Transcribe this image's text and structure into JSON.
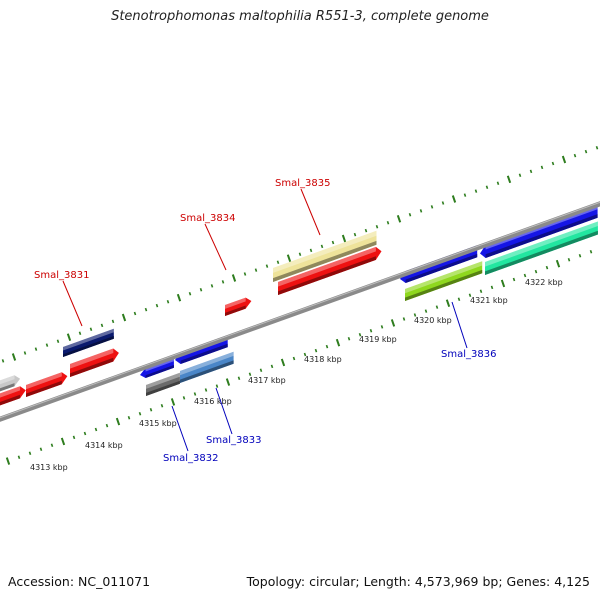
{
  "title": "Stenotrophomonas maltophilia R551-3, complete genome",
  "footer": {
    "accession": "Accession: NC_011071",
    "summary": "Topology: circular; Length: 4,573,969 bp; Genes: 4,125"
  },
  "colors": {
    "plus_label": "#cc0000",
    "minus_label": "#0000bb",
    "backbone": "#8a8a8a",
    "tick": "#2e7d1e"
  },
  "scale_labels": [
    "4313 kbp",
    "4314 kbp",
    "4315 kbp",
    "4316 kbp",
    "4317 kbp",
    "4318 kbp",
    "4319 kbp",
    "4320 kbp",
    "4321 kbp",
    "4322 kbp"
  ],
  "gene_labels": {
    "plus": [
      "Smal_3831",
      "Smal_3834",
      "Smal_3835"
    ],
    "minus": [
      "Smal_3832",
      "Smal_3833",
      "Smal_3836"
    ]
  },
  "features": [
    {
      "name": "feature-silver-upper",
      "color": "#c8c8c8"
    },
    {
      "name": "feature-navy",
      "color": "#0a1a6e"
    },
    {
      "name": "feature-red-upper",
      "color": "#ee1111"
    },
    {
      "name": "feature-pale-yellow",
      "color": "#eee39a"
    },
    {
      "name": "feature-blue-upper",
      "color": "#1515e6"
    },
    {
      "name": "feature-gray-lower",
      "color": "#6a6a6a"
    },
    {
      "name": "feature-steel-blue",
      "color": "#4a86c8"
    },
    {
      "name": "feature-yellow-green",
      "color": "#8fd81e"
    },
    {
      "name": "feature-aquamarine",
      "color": "#22e6a0"
    }
  ]
}
